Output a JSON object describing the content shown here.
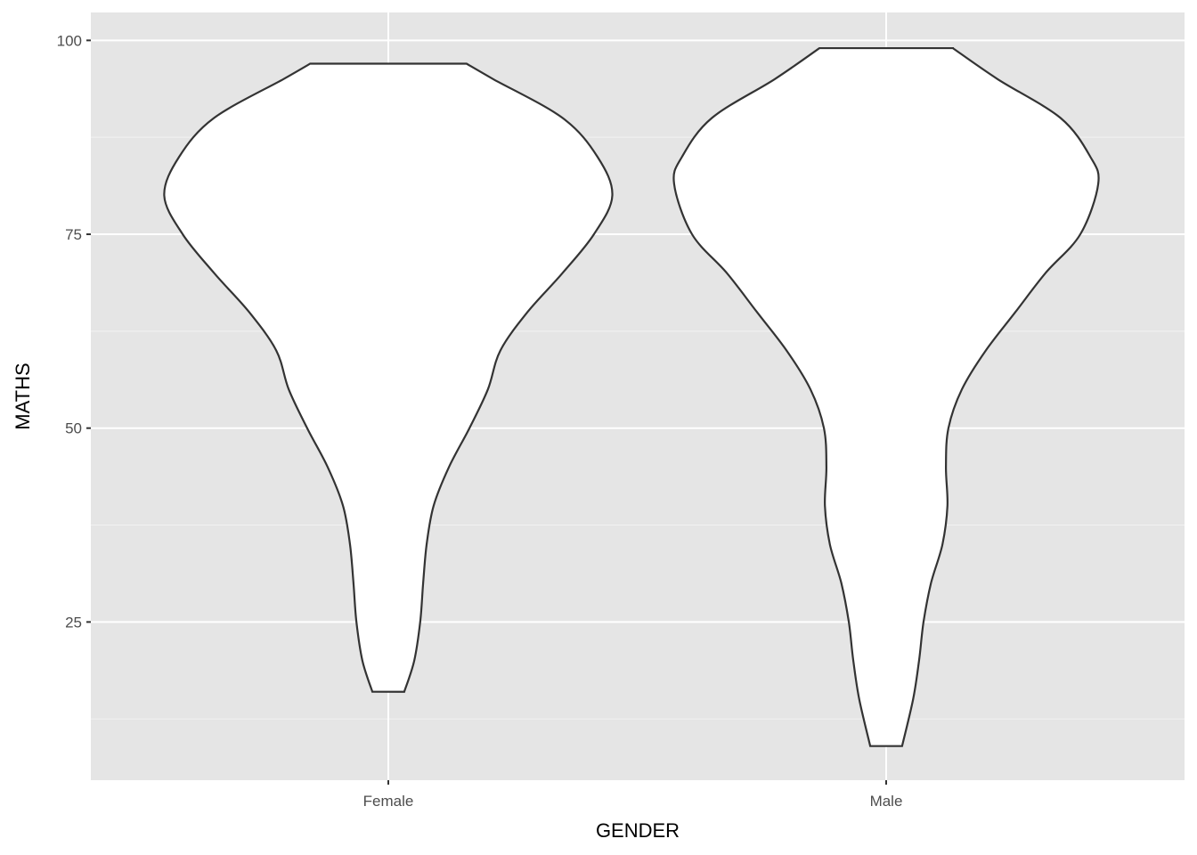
{
  "chart_data": {
    "type": "violin",
    "title": "",
    "xlabel": "GENDER",
    "ylabel": "MATHS",
    "categories": [
      "Female",
      "Male"
    ],
    "ylim": [
      4.6,
      103.6
    ],
    "yticks": [
      25,
      50,
      75,
      100
    ],
    "grid": true,
    "panel_background": "#e5e5e5",
    "fill_color": "#ffffff",
    "outline_color": "#333333",
    "series": [
      {
        "category": "Female",
        "min": 16,
        "max": 97,
        "profile_value": [
          97,
          95,
          90,
          85,
          80,
          75,
          70,
          65,
          60,
          55,
          50,
          45,
          40,
          35,
          30,
          25,
          20,
          16
        ],
        "profile_halfwidth": [
          0.157,
          0.211,
          0.35,
          0.42,
          0.45,
          0.413,
          0.35,
          0.28,
          0.225,
          0.2,
          0.163,
          0.122,
          0.091,
          0.077,
          0.07,
          0.064,
          0.052,
          0.032
        ]
      },
      {
        "category": "Male",
        "min": 9,
        "max": 99,
        "profile_value": [
          99,
          95,
          90,
          85,
          81.5,
          75,
          70,
          65,
          60,
          55,
          50,
          45,
          40,
          35,
          30,
          25,
          20,
          15,
          9
        ],
        "profile_halfwidth": [
          0.134,
          0.224,
          0.35,
          0.41,
          0.426,
          0.39,
          0.32,
          0.26,
          0.2,
          0.152,
          0.125,
          0.12,
          0.123,
          0.113,
          0.09,
          0.075,
          0.066,
          0.054,
          0.032
        ]
      }
    ]
  }
}
